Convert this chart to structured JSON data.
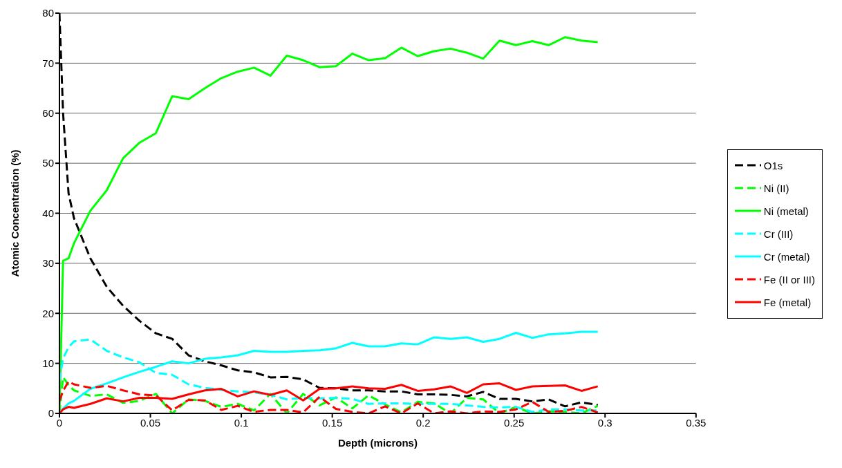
{
  "chart_data": {
    "type": "line",
    "xlabel": "Depth (microns)",
    "ylabel": "Atomic Concentration (%)",
    "x": [
      0,
      0.002,
      0.005,
      0.008,
      0.017,
      0.026,
      0.035,
      0.044,
      0.053,
      0.062,
      0.071,
      0.08,
      0.089,
      0.098,
      0.107,
      0.116,
      0.125,
      0.134,
      0.143,
      0.152,
      0.161,
      0.17,
      0.179,
      0.188,
      0.197,
      0.206,
      0.215,
      0.224,
      0.233,
      0.242,
      0.251,
      0.26,
      0.269,
      0.278,
      0.287,
      0.296
    ],
    "series": [
      {
        "name": "O1s",
        "color": "#000000",
        "line_style": "dashed",
        "values": [
          80,
          60,
          44,
          39,
          31,
          25.3,
          21.5,
          18.5,
          16,
          14.9,
          11.6,
          10.4,
          9.6,
          8.6,
          8.2,
          7.2,
          7.3,
          6.8,
          5.1,
          5.0,
          4.6,
          4.6,
          4.4,
          4.4,
          3.8,
          3.8,
          3.7,
          3.4,
          4.3,
          2.9,
          2.9,
          2.4,
          2.8,
          1.4,
          2.2,
          1.7
        ]
      },
      {
        "name": "Ni (II)",
        "color": "#00ff00",
        "line_style": "dashed",
        "values": [
          0,
          7.2,
          5.7,
          4.6,
          3.5,
          3.8,
          2.1,
          2.5,
          3.9,
          0,
          2.8,
          2.5,
          1.3,
          1.9,
          0.6,
          3.9,
          0,
          3.9,
          1.6,
          3.2,
          1.0,
          3.6,
          1.8,
          0.2,
          2.3,
          2.0,
          0,
          3.1,
          2.8,
          0,
          1.3,
          0,
          0.4,
          0.3,
          0,
          1.5
        ]
      },
      {
        "name": "Ni (metal)",
        "color": "#00ff00",
        "line_style": "solid",
        "values": [
          0,
          30.5,
          31,
          34,
          40.5,
          44.6,
          51.0,
          54.1,
          56.0,
          63.4,
          62.8,
          65.0,
          67.0,
          68.3,
          69.1,
          67.5,
          71.5,
          70.6,
          69.2,
          69.4,
          71.9,
          70.6,
          71.0,
          73.1,
          71.4,
          72.4,
          72.9,
          72.1,
          70.9,
          74.5,
          73.6,
          74.4,
          73.6,
          75.2,
          74.5,
          74.2
        ]
      },
      {
        "name": "Cr (III)",
        "color": "#00ffff",
        "line_style": "dashed",
        "values": [
          6.5,
          11,
          13.2,
          14.4,
          14.8,
          12.5,
          11.2,
          10.2,
          8.1,
          7.7,
          5.8,
          5.1,
          4.7,
          4.4,
          4.2,
          3.7,
          2.8,
          3.1,
          3.0,
          3.1,
          2.9,
          1.9,
          2.0,
          2.0,
          1.9,
          1.9,
          1.9,
          1.6,
          1.3,
          1.2,
          1.3,
          0.3,
          0.8,
          0.8,
          0.6,
          0.6
        ]
      },
      {
        "name": "Cr (metal)",
        "color": "#00ffff",
        "line_style": "solid",
        "values": [
          0,
          1.0,
          2.0,
          2.5,
          4.9,
          6.0,
          7.2,
          8.3,
          9.3,
          10.4,
          10.0,
          10.9,
          11.2,
          11.6,
          12.5,
          12.3,
          12.3,
          12.5,
          12.6,
          13.0,
          14.1,
          13.4,
          13.4,
          14.0,
          13.8,
          15.2,
          14.9,
          15.2,
          14.3,
          14.9,
          16.1,
          15.1,
          15.8,
          16.0,
          16.3,
          16.3
        ]
      },
      {
        "name": "Fe (II or III)",
        "color": "#ff0000",
        "line_style": "dashed",
        "values": [
          2.5,
          4.5,
          6.4,
          5.8,
          5.1,
          5.5,
          4.6,
          3.8,
          3.6,
          0.6,
          2.7,
          2.6,
          0.7,
          1.5,
          0.3,
          0.7,
          0.7,
          0.2,
          3.3,
          0.9,
          0.3,
          0,
          1.4,
          0,
          2.0,
          0,
          0.4,
          0,
          0.4,
          0.3,
          0.8,
          2.3,
          0.3,
          0.5,
          1.3,
          0.2
        ]
      },
      {
        "name": "Fe (metal)",
        "color": "#ff0000",
        "line_style": "solid",
        "values": [
          0,
          0.8,
          1.3,
          1.1,
          1.9,
          3.0,
          2.4,
          3.1,
          3.1,
          2.9,
          3.8,
          4.6,
          4.9,
          3.4,
          4.4,
          3.7,
          4.6,
          2.6,
          4.9,
          5.0,
          5.4,
          5.0,
          4.9,
          5.7,
          4.5,
          4.8,
          5.4,
          4.1,
          5.8,
          6.0,
          4.7,
          5.4,
          5.5,
          5.6,
          4.5,
          5.4
        ]
      }
    ],
    "xlim": [
      0,
      0.35
    ],
    "xticks": [
      0,
      0.05,
      0.1,
      0.15,
      0.2,
      0.25,
      0.3,
      0.35
    ],
    "ylim": [
      0,
      80
    ],
    "yticks": [
      0,
      10,
      20,
      30,
      40,
      50,
      60,
      70,
      80
    ],
    "grid": "y",
    "legend": "right",
    "marker": "none"
  }
}
